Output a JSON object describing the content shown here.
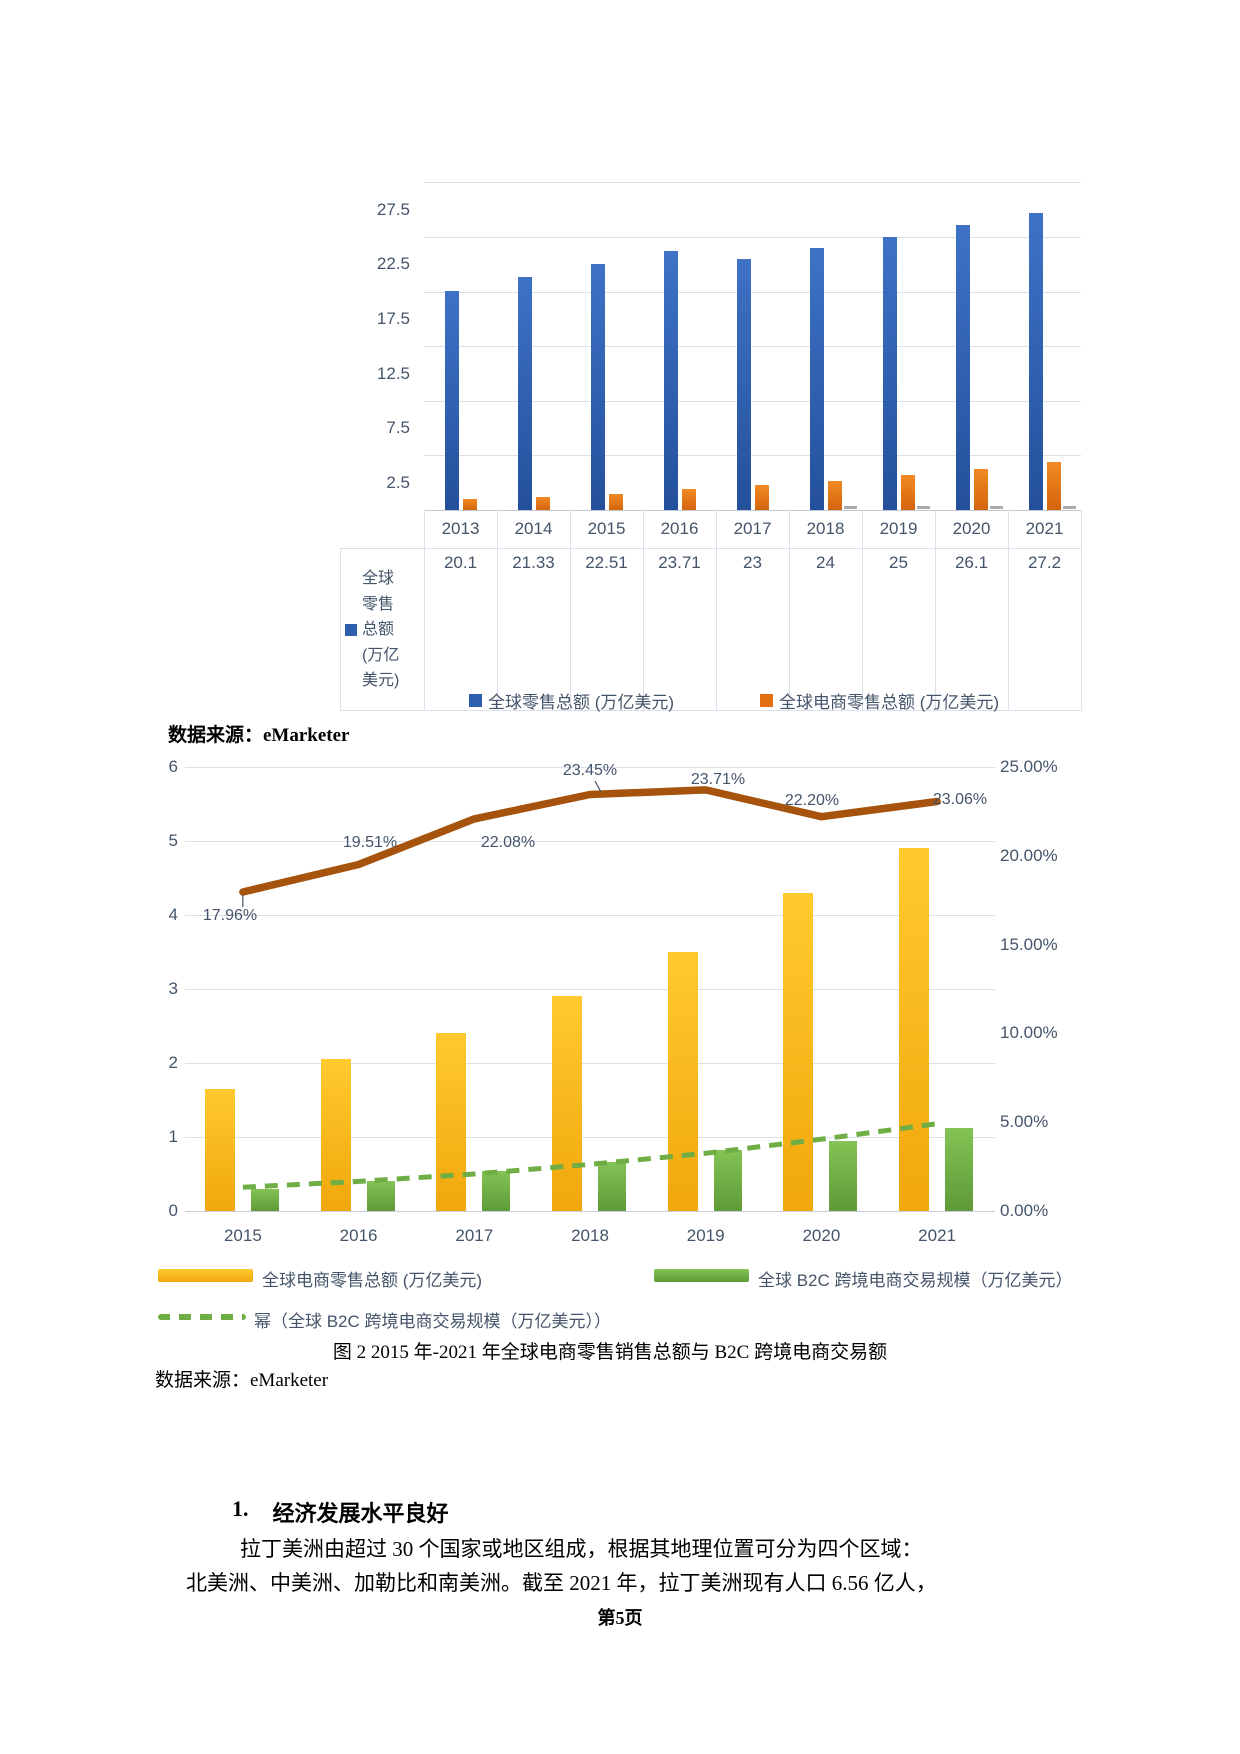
{
  "document": {
    "source_top": "数据来源：eMarketer",
    "caption": "图 2 2015 年-2021 年全球电商零售销售总额与 B2C 跨境电商交易额",
    "source_bottom": "数据来源：eMarketer",
    "heading_number": "1.",
    "heading_text": "经济发展水平良好",
    "para_line1": "拉丁美洲由超过 30 个国家或地区组成，根据其地理位置可分为四个区域：",
    "para_line2": "北美洲、中美洲、加勒比和南美洲。截至 2021 年，拉丁美洲现有人口 6.56 亿人，",
    "footer": "第5页"
  },
  "chart_data": [
    {
      "type": "bar",
      "categories": [
        "2013",
        "2014",
        "2015",
        "2016",
        "2017",
        "2018",
        "2019",
        "2020",
        "2021"
      ],
      "series": [
        {
          "name": "全球零售总额 (万亿美元)",
          "color": "#2E5FAE",
          "values": [
            20.1,
            21.33,
            22.51,
            23.71,
            23,
            24,
            25,
            26.1,
            27.2
          ]
        },
        {
          "name": "全球电商零售总额 (万亿美元)",
          "color": "#E2700F",
          "values": [
            1.0,
            1.2,
            1.5,
            1.9,
            2.3,
            2.7,
            3.2,
            3.8,
            4.4
          ]
        }
      ],
      "y_tick_labels": [
        "2.5",
        "7.5",
        "12.5",
        "17.5",
        "22.5",
        "27.5"
      ],
      "ylim": [
        0,
        30
      ],
      "gridline_step": 5,
      "grid": "horizontal",
      "legend_position": "bottom-inside-table",
      "data_table": {
        "row_label": "全球零售总额(万亿美元)",
        "values": [
          "20.1",
          "21.33",
          "22.51",
          "23.71",
          "23",
          "24",
          "25",
          "26.1",
          "27.2"
        ]
      },
      "small_gray_marks_years": [
        "2018",
        "2019",
        "2020",
        "2021"
      ]
    },
    {
      "type": "bar+line",
      "categories": [
        "2015",
        "2016",
        "2017",
        "2018",
        "2019",
        "2020",
        "2021"
      ],
      "bar_series": [
        {
          "name": "全球电商零售总额 (万亿美元)",
          "color": "#FFC000",
          "axis": "left",
          "values": [
            1.65,
            2.05,
            2.4,
            2.9,
            3.5,
            4.3,
            4.9
          ]
        },
        {
          "name": "全球 B2C 跨境电商交易规模（万亿美元）",
          "color": "#70AD47",
          "axis": "left",
          "values": [
            0.3,
            0.41,
            0.54,
            0.66,
            0.82,
            0.95,
            1.12
          ]
        }
      ],
      "line_series": {
        "color": "#A5530D",
        "axis": "right",
        "values_pct": [
          17.96,
          19.51,
          22.08,
          23.45,
          23.71,
          22.2,
          23.06
        ],
        "labels": [
          "17.96%",
          "19.51%",
          "22.08%",
          "23.45%",
          "23.71%",
          "22.20%",
          "23.06%"
        ]
      },
      "trend_series": {
        "name": "幂（全球 B2C 跨境电商交易规模（万亿美元））",
        "style": "dashed",
        "color": "#6FAE44",
        "values": [
          0.32,
          0.4,
          0.5,
          0.63,
          0.78,
          0.97,
          1.18
        ]
      },
      "left_axis": {
        "ticks": [
          "0",
          "1",
          "2",
          "3",
          "4",
          "5",
          "6"
        ],
        "range": [
          0,
          6
        ]
      },
      "right_axis": {
        "ticks": [
          "0.00%",
          "5.00%",
          "10.00%",
          "15.00%",
          "20.00%",
          "25.00%"
        ],
        "range_pct": [
          0,
          25
        ]
      },
      "legend": [
        {
          "swatch": "yellow-bar",
          "label": "全球电商零售总额 (万亿美元)"
        },
        {
          "swatch": "green-bar",
          "label": "全球 B2C 跨境电商交易规模（万亿美元）"
        },
        {
          "swatch": "green-dashed",
          "label": "幂（全球 B2C 跨境电商交易规模（万亿美元））"
        }
      ]
    }
  ]
}
